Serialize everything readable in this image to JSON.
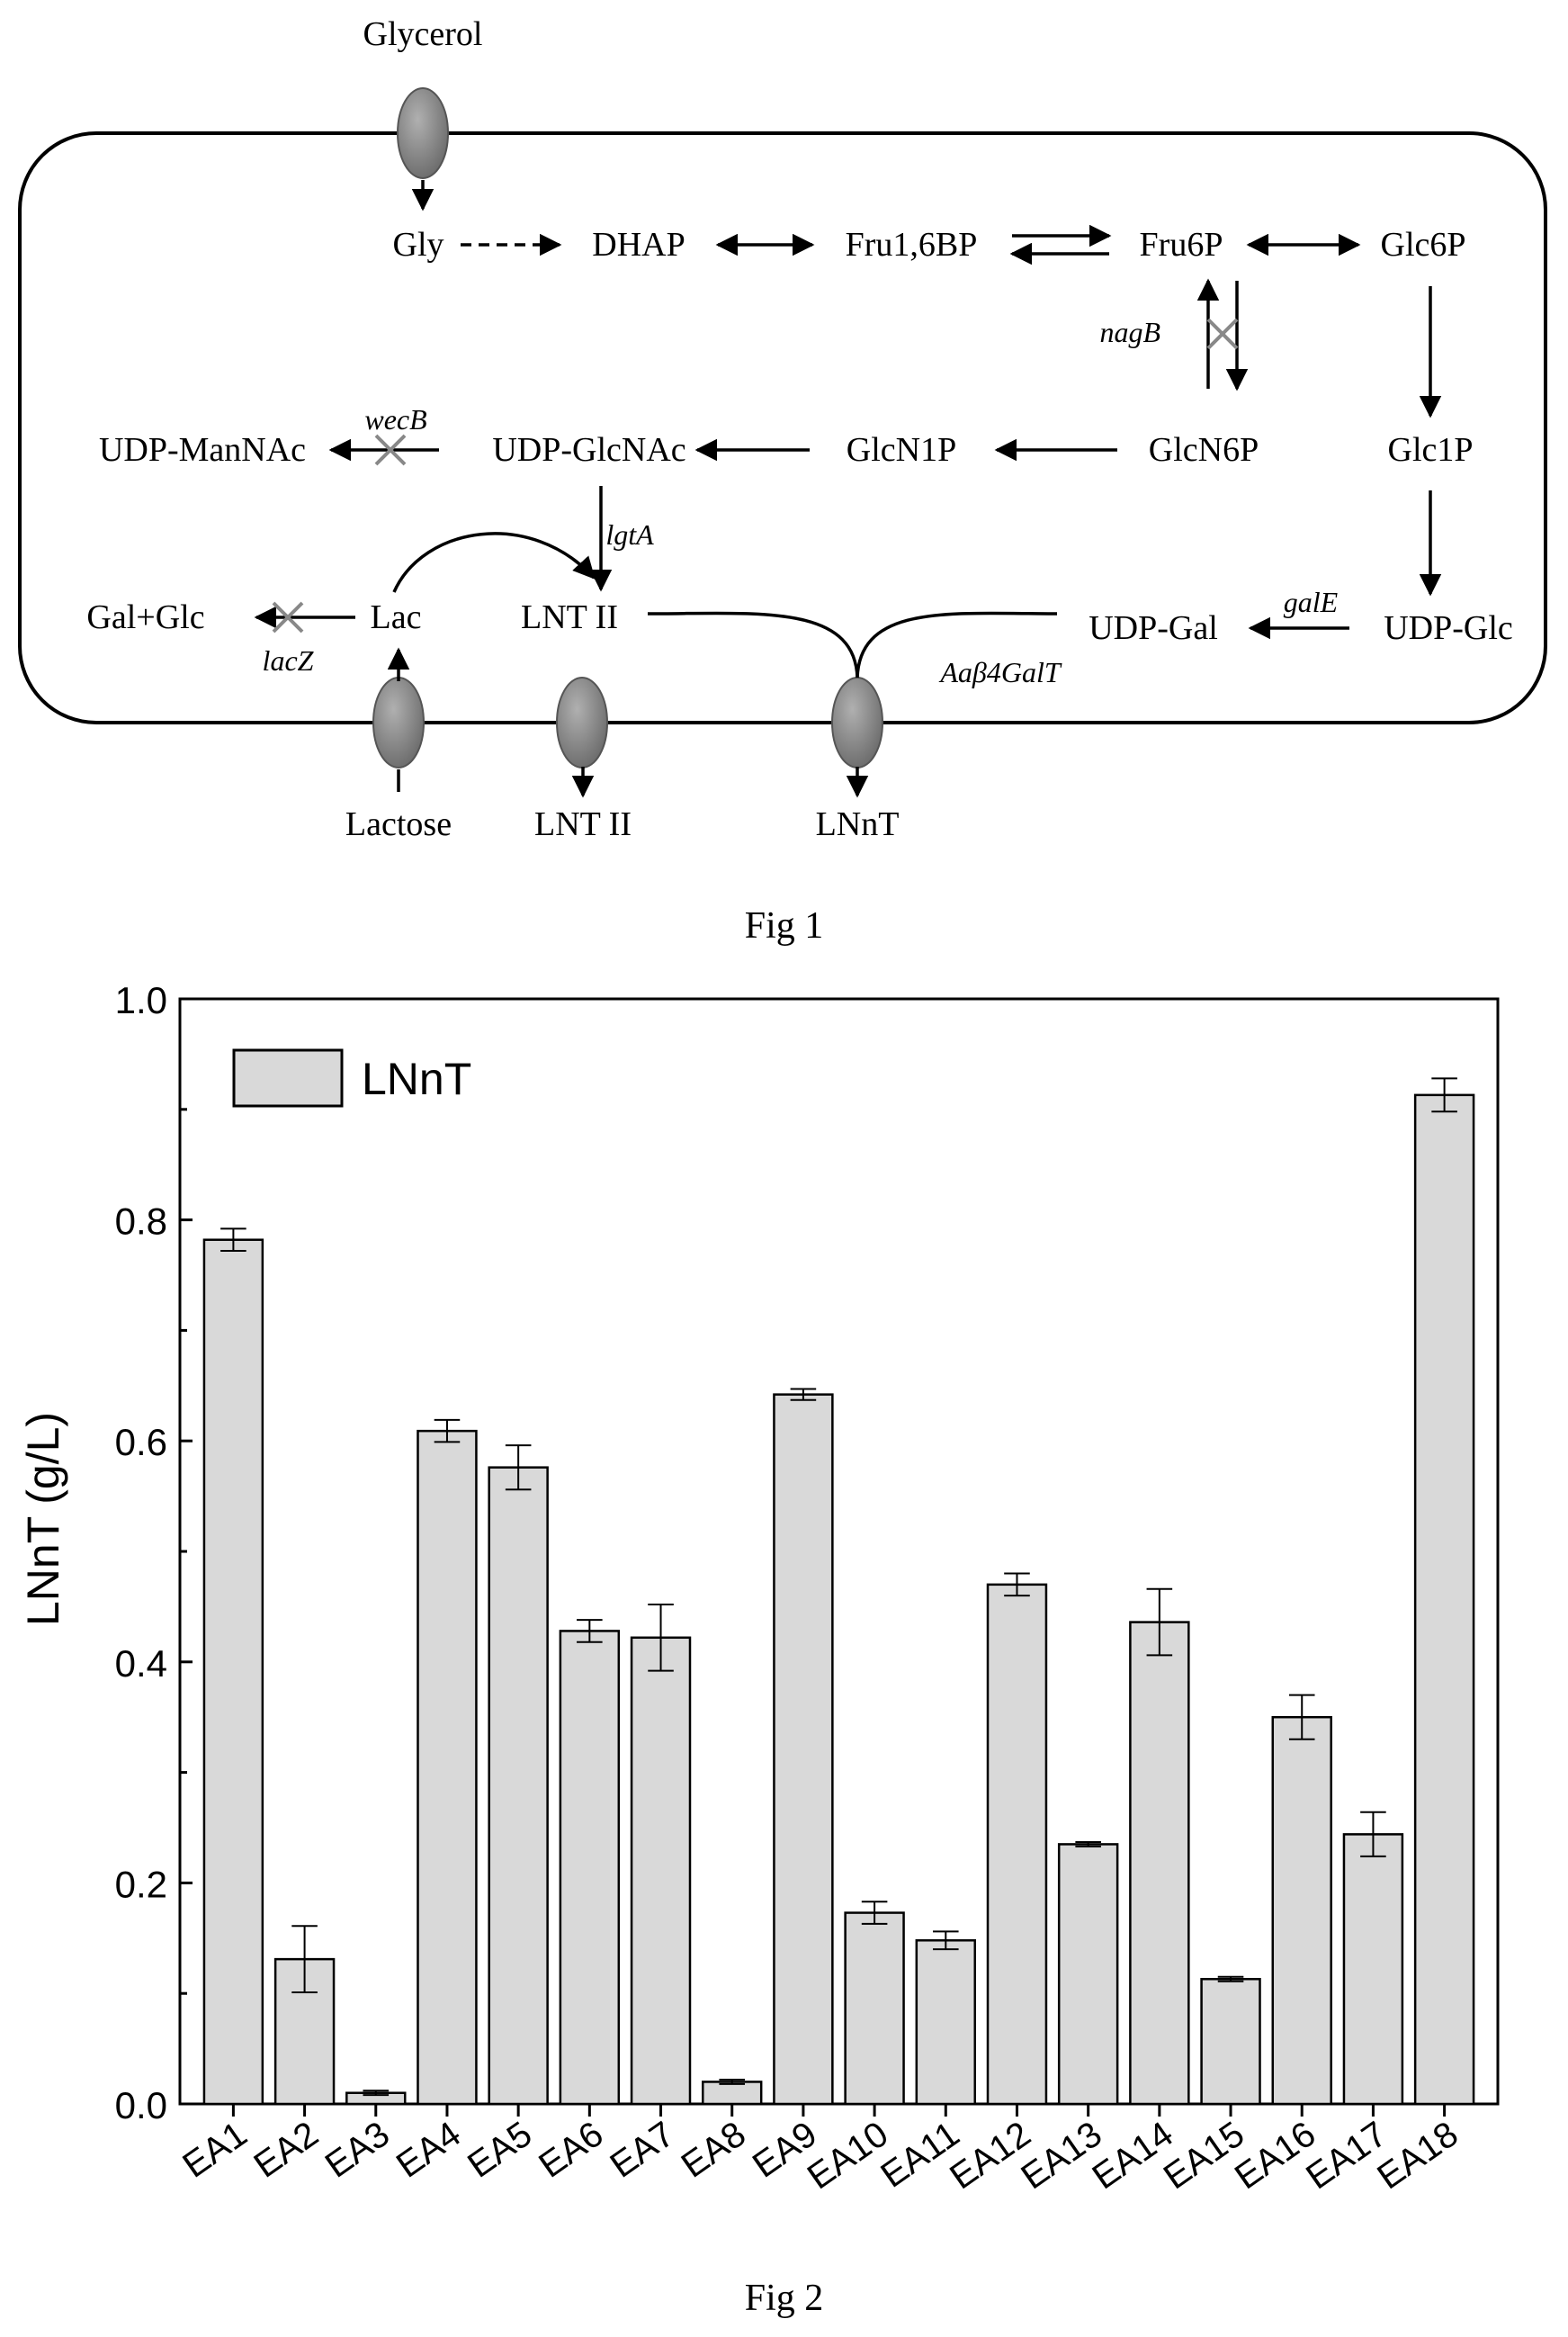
{
  "fig1": {
    "caption": "Fig 1",
    "metabolites": {
      "glycerol": "Glycerol",
      "gly": "Gly",
      "dhap": "DHAP",
      "fru16bp": "Fru1,6BP",
      "fru6p": "Fru6P",
      "glc6p": "Glc6P",
      "udp_mannac": "UDP-ManNAc",
      "udp_glcnac": "UDP-GlcNAc",
      "glcn1p": "GlcN1P",
      "glcn6p": "GlcN6P",
      "glc1p": "Glc1P",
      "galglc": "Gal+Glc",
      "lac": "Lac",
      "lnt2_in": "LNT II",
      "udp_gal": "UDP-Gal",
      "udp_glc": "UDP-Glc",
      "lactose": "Lactose",
      "lnt2_out": "LNT II",
      "lnnt": "LNnT"
    },
    "genes": {
      "nagB": "nagB",
      "wecB": "wecB",
      "lgtA": "lgtA",
      "galE": "galE",
      "lacZ": "lacZ",
      "galT": "Aaβ4GalT"
    }
  },
  "fig2": {
    "caption": "Fig 2",
    "chart_data": {
      "type": "bar",
      "title": "",
      "xlabel": "",
      "ylabel": "LNnT (g/L)",
      "ylim": [
        0.0,
        1.0
      ],
      "yticks": [
        "0.0",
        "0.2",
        "0.4",
        "0.6",
        "0.8",
        "1.0"
      ],
      "legend": {
        "placement": "top-left"
      },
      "categories": [
        "EA1",
        "EA2",
        "EA3",
        "EA4",
        "EA5",
        "EA6",
        "EA7",
        "EA8",
        "EA9",
        "EA10",
        "EA11",
        "EA12",
        "EA13",
        "EA14",
        "EA15",
        "EA16",
        "EA17",
        "EA18"
      ],
      "series": [
        {
          "name": "LNnT",
          "color": "#d9d9d9",
          "values": [
            0.782,
            0.131,
            0.01,
            0.609,
            0.576,
            0.428,
            0.422,
            0.02,
            0.642,
            0.173,
            0.148,
            0.47,
            0.235,
            0.436,
            0.113,
            0.35,
            0.244,
            0.913
          ],
          "errors": [
            0.01,
            0.03,
            0.002,
            0.01,
            0.02,
            0.01,
            0.03,
            0.002,
            0.005,
            0.01,
            0.008,
            0.01,
            0.002,
            0.03,
            0.002,
            0.02,
            0.02,
            0.015
          ]
        }
      ],
      "grid": false
    }
  }
}
